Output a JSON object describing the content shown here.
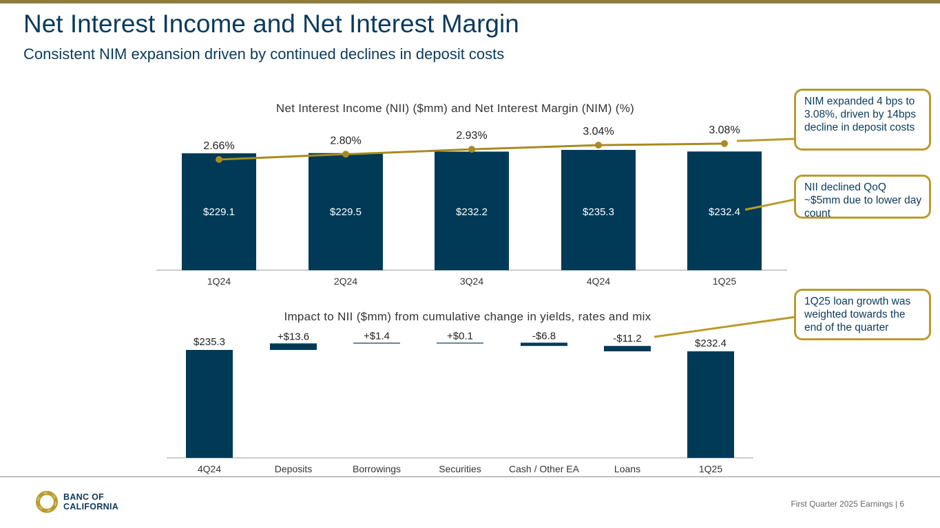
{
  "header": {
    "title": "Net Interest Income and Net Interest Margin",
    "subtitle": "Consistent NIM expansion driven by continued declines in deposit costs"
  },
  "colors": {
    "navy": "#003a57",
    "gold": "#a88a22",
    "accent": "#b99a2e",
    "title": "#0b3a5c"
  },
  "chart_data": [
    {
      "type": "bar",
      "title": "Net Interest Income (NII) ($mm) and Net Interest Margin (NIM) (%)",
      "categories": [
        "1Q24",
        "2Q24",
        "3Q24",
        "4Q24",
        "1Q25"
      ],
      "series": [
        {
          "name": "NII ($mm)",
          "kind": "bar",
          "values": [
            229.1,
            229.5,
            232.2,
            235.3,
            232.4
          ],
          "labels": [
            "$229.1",
            "$229.5",
            "$232.2",
            "$235.3",
            "$232.4"
          ]
        },
        {
          "name": "NIM (%)",
          "kind": "line",
          "values": [
            2.66,
            2.8,
            2.93,
            3.04,
            3.08
          ],
          "labels": [
            "2.66%",
            "2.80%",
            "2.93%",
            "3.04%",
            "3.08%"
          ]
        }
      ]
    },
    {
      "type": "waterfall",
      "title": "Impact to NII ($mm) from cumulative change in yields, rates and mix",
      "categories": [
        "4Q24",
        "Deposits",
        "Borrowings",
        "Securities",
        "Cash / Other EA",
        "Loans",
        "1Q25"
      ],
      "values": [
        235.3,
        13.6,
        1.4,
        0.1,
        -6.8,
        -11.2,
        232.4
      ],
      "labels": [
        "$235.3",
        "+$13.6",
        "+$1.4",
        "+$0.1",
        "-$6.8",
        "-$11.2",
        "$232.4"
      ],
      "is_total": [
        true,
        false,
        false,
        false,
        false,
        false,
        true
      ]
    }
  ],
  "callouts": [
    {
      "text": "NIM expanded 4 bps to 3.08%, driven by 14bps decline in deposit costs"
    },
    {
      "text": "NII declined QoQ ~$5mm due to lower day count"
    },
    {
      "text": "1Q25 loan growth was weighted towards the end of the quarter"
    }
  ],
  "logo": {
    "line1": "BANC OF",
    "line2": "CALIFORNIA"
  },
  "footer": {
    "text": "First Quarter 2025 Earnings |",
    "page": "6"
  }
}
